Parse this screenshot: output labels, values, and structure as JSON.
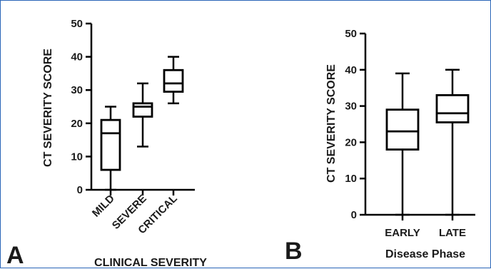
{
  "chart_data": [
    {
      "type": "box",
      "panel_label": "A",
      "xlabel": "CLINICAL SEVERITY",
      "ylabel": "CT SEVERITY SCORE",
      "ylim": [
        0,
        50
      ],
      "yticks": [
        0,
        10,
        20,
        30,
        40,
        50
      ],
      "categories": [
        "MILD",
        "SEVERE",
        "CRITICAL"
      ],
      "boxes": [
        {
          "min": 0,
          "q1": 6,
          "median": 17,
          "q3": 21,
          "max": 25
        },
        {
          "min": 13,
          "q1": 22,
          "median": 25,
          "q3": 26,
          "max": 32
        },
        {
          "min": 26,
          "q1": 29.5,
          "median": 32,
          "q3": 36,
          "max": 40
        }
      ],
      "grid": false,
      "color": "#000000"
    },
    {
      "type": "box",
      "panel_label": "B",
      "xlabel": "Disease Phase",
      "ylabel": "CT SEVERITY SCORE",
      "ylim": [
        0,
        50
      ],
      "yticks": [
        0,
        10,
        20,
        30,
        40,
        50
      ],
      "categories": [
        "EARLY",
        "LATE"
      ],
      "boxes": [
        {
          "min": 0,
          "q1": 18,
          "median": 23,
          "q3": 29,
          "max": 39
        },
        {
          "min": 0,
          "q1": 25.5,
          "median": 28,
          "q3": 33,
          "max": 40
        }
      ],
      "grid": false,
      "color": "#000000"
    }
  ]
}
